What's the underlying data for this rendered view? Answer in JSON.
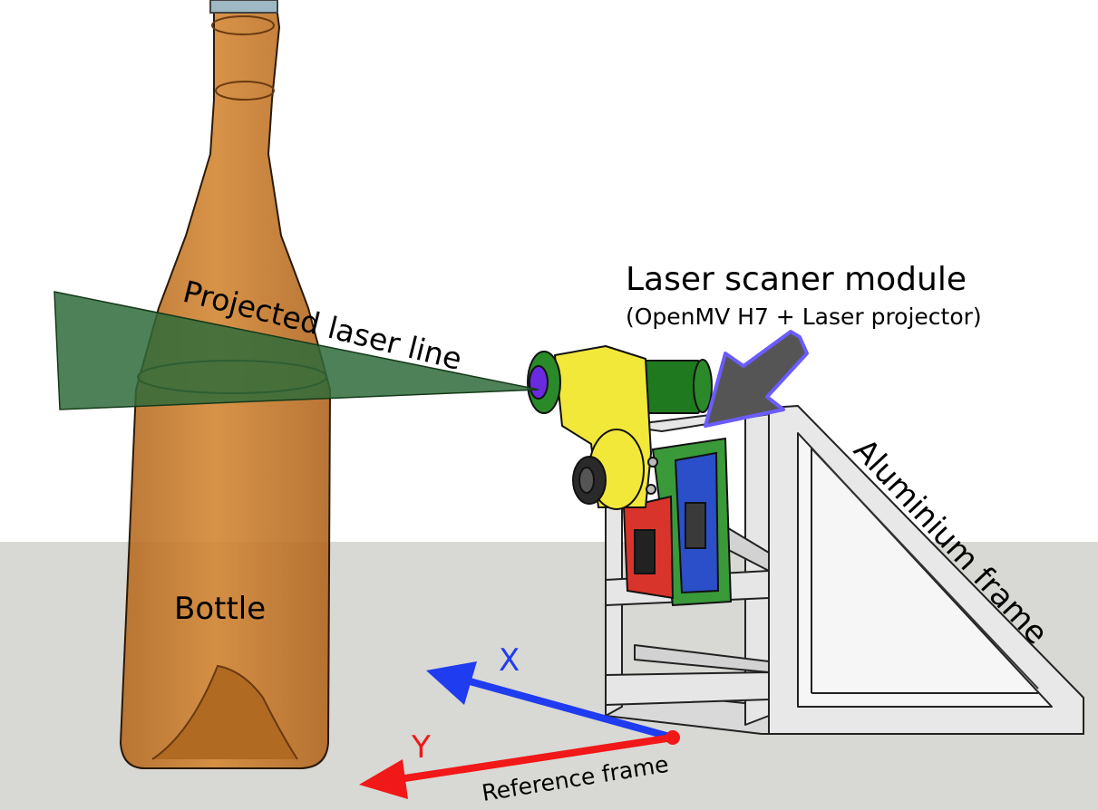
{
  "labels": {
    "projected_laser_line": "Projected laser line",
    "bottle": "Bottle",
    "module_title": "Laser scaner module",
    "module_subtitle": "(OpenMV H7 + Laser projector)",
    "aluminium_frame": "Aluminium frame",
    "axis_x": "X",
    "axis_y": "Y",
    "reference_frame": "Reference frame"
  },
  "colors": {
    "background": "#ffffff",
    "floor": "#d8d8d4",
    "bottle_fill": "#c97a2c",
    "laser_plane": "#2f6b3a",
    "laser_body": "#1f7a1f",
    "mount_yellow": "#f2e83a",
    "frame_grey": "#e4e4e4",
    "camera_board_red": "#d9342b",
    "camera_board_blue": "#2b4fc9",
    "pcb_green": "#3a9a3a",
    "arrow_fill": "#555555",
    "arrow_outline": "#6a5cff",
    "axis_x": "#1f3cf0",
    "axis_y": "#f01818",
    "text": "#000000"
  },
  "icons": [
    "bottle-shape",
    "laser-module",
    "aluminium-frame",
    "pointer-arrow",
    "axis-arrow"
  ]
}
